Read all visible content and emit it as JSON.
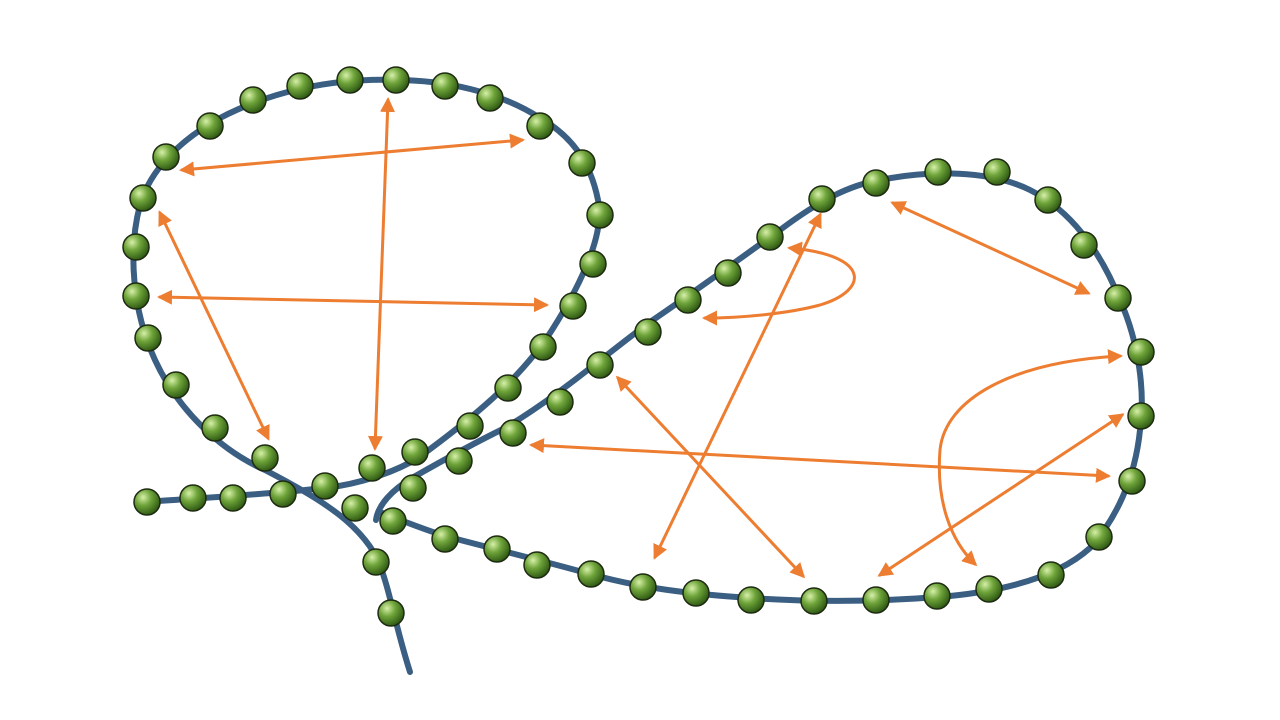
{
  "colors": {
    "background": "#ffffff",
    "chain": "#3b5f82",
    "chain_outline": "#1f3a55",
    "bead_fill": "#6fa43a",
    "bead_highlight": "#d6f0a8",
    "bead_shadow": "#2f5a14",
    "bead_outline": "#1e2b12",
    "arrow": "#ed7d31"
  },
  "icons": {
    "bead": "green-sphere-icon",
    "arrowhead": "arrowhead-icon"
  }
}
